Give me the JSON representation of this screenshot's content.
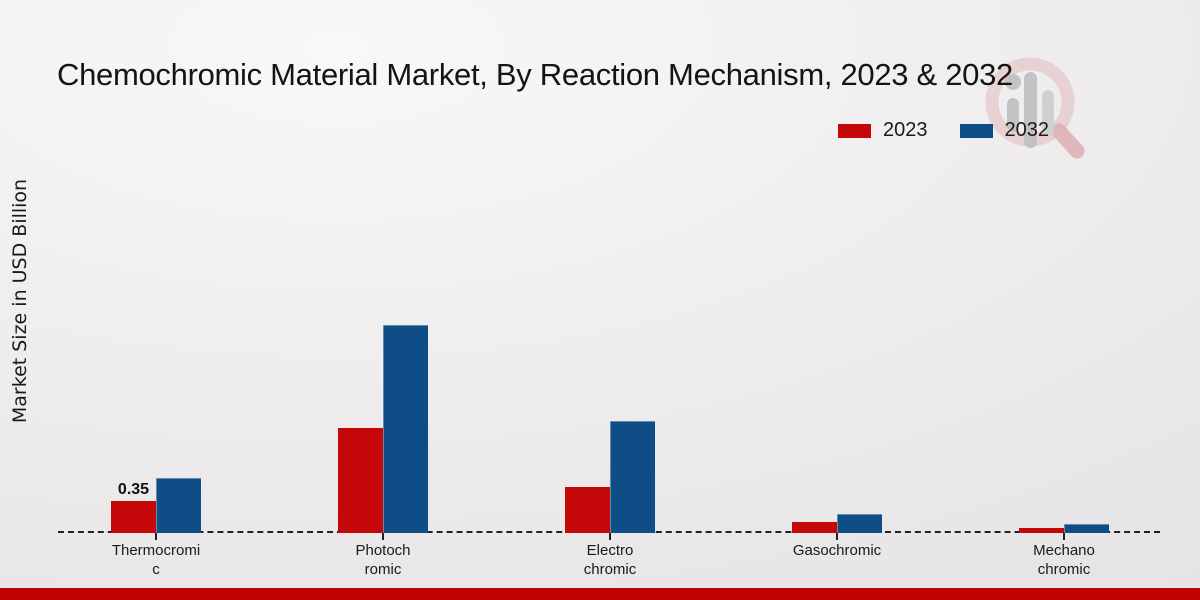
{
  "title": "Chemochromic Material Market, By Reaction Mechanism, 2023 & 2032",
  "y_axis_label": "Market Size in USD Billion",
  "icons": {
    "watermark": "magnifier-bar-chart-logo"
  },
  "colors": {
    "series_2023": "#c40708",
    "series_2032": "#0f4d86",
    "bottom_strip": "#c00202",
    "baseline": "#222222",
    "watermark_ring": "#dfa9ad",
    "watermark_handle": "#d08287",
    "watermark_bars": "#9fa1a6"
  },
  "legend": {
    "position": "top-right",
    "items": [
      {
        "label": "2023"
      },
      {
        "label": "2032"
      }
    ]
  },
  "chart_data": {
    "type": "bar",
    "title": "Chemochromic Material Market, By Reaction Mechanism, 2023 & 2032",
    "ylabel": "Market Size in USD Billion",
    "categories": [
      "Thermocromic",
      "Photochromic",
      "Electrochromic",
      "Gasochromic",
      "Mechanochromic"
    ],
    "category_label_lines": [
      [
        "Thermocromi",
        "c"
      ],
      [
        "Photoch",
        "romic"
      ],
      [
        "Electro",
        "chromic"
      ],
      [
        "Gasochromic"
      ],
      [
        "Mechano",
        "chromic"
      ]
    ],
    "series": [
      {
        "name": "2023",
        "color": "#c40708",
        "values": [
          0.35,
          1.15,
          0.5,
          0.12,
          0.06
        ]
      },
      {
        "name": "2032",
        "color": "#0f4d86",
        "values": [
          0.6,
          2.28,
          1.22,
          0.21,
          0.1
        ]
      }
    ],
    "data_labels": [
      {
        "series": "2023",
        "category_index": 0,
        "text": "0.35"
      }
    ],
    "ylim": [
      0,
      2.6
    ],
    "grid": false,
    "baseline_style": "dashed",
    "legend_position": "top-right",
    "units": "USD Billion"
  }
}
